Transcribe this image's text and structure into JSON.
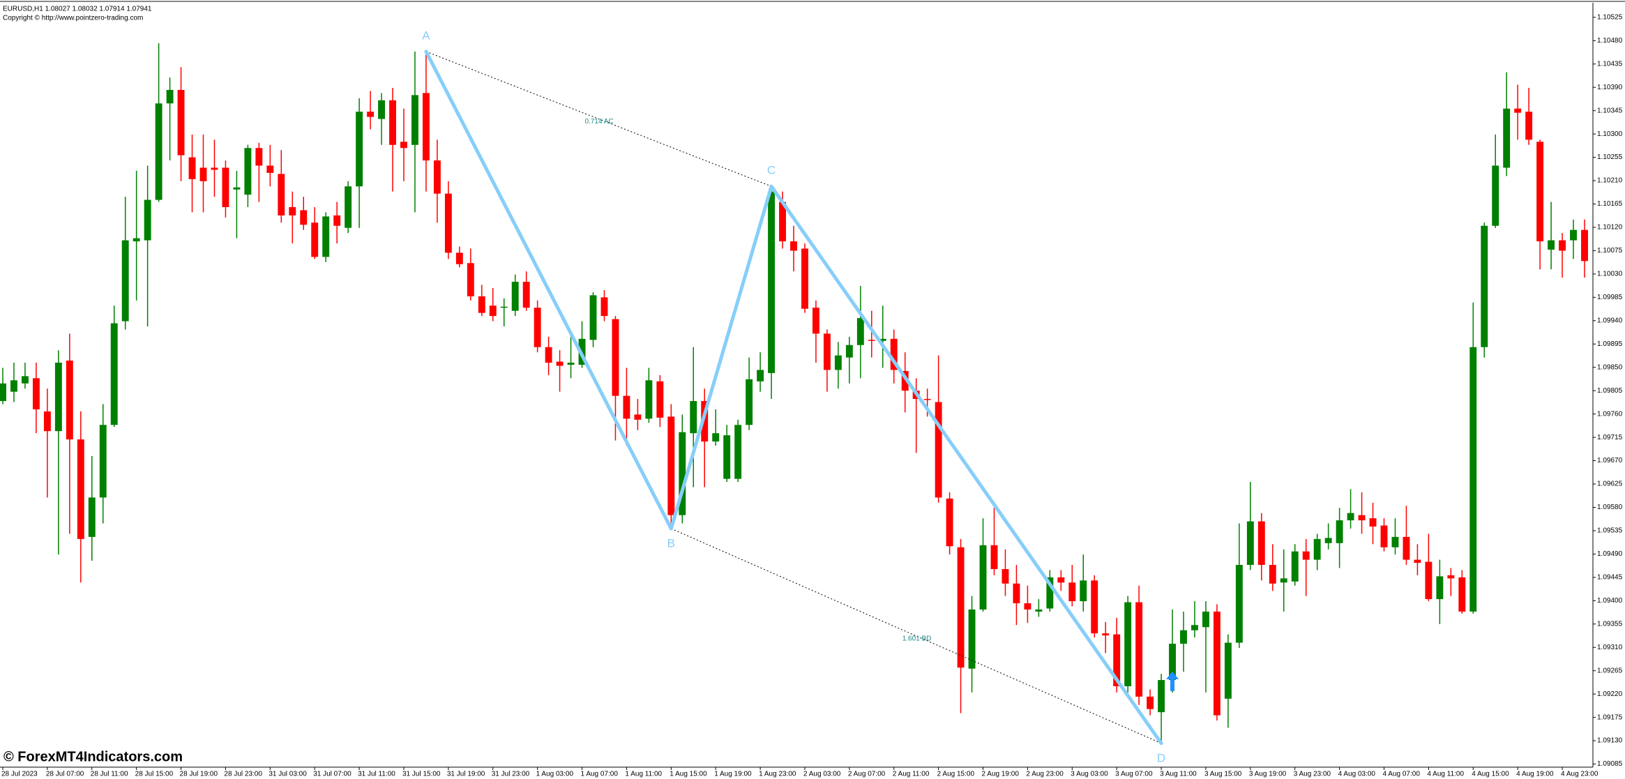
{
  "header": {
    "symbol_line": "EURUSD,H1  1.08027 1.08032 1.07914 1.07941",
    "copyright": "Copyright © http://www.pointzero-trading.com"
  },
  "watermark": "© ForexMT4Indicators.com",
  "chart_data": {
    "type": "candlestick",
    "up_color": "#008000",
    "down_color": "#ff0000",
    "categories": [
      "28 Jul 2023",
      null,
      null,
      null,
      "28 Jul 07:00",
      null,
      null,
      null,
      "28 Jul 11:00",
      null,
      null,
      null,
      "28 Jul 15:00",
      null,
      null,
      null,
      "28 Jul 19:00",
      null,
      null,
      null,
      "28 Jul 23:00",
      null,
      null,
      null,
      "31 Jul 03:00",
      null,
      null,
      null,
      "31 Jul 07:00",
      null,
      null,
      null,
      "31 Jul 11:00",
      null,
      null,
      null,
      "31 Jul 15:00",
      null,
      null,
      null,
      "31 Jul 19:00",
      null,
      null,
      null,
      "31 Jul 23:00",
      null,
      null,
      null,
      "1 Aug 03:00",
      null,
      null,
      null,
      "1 Aug 07:00",
      null,
      null,
      null,
      "1 Aug 11:00",
      null,
      null,
      null,
      "1 Aug 15:00",
      null,
      null,
      null,
      "1 Aug 19:00",
      null,
      null,
      null,
      "1 Aug 23:00",
      null,
      null,
      null,
      "2 Aug 03:00",
      null,
      null,
      null,
      "2 Aug 07:00",
      null,
      null,
      null,
      "2 Aug 11:00",
      null,
      null,
      null,
      "2 Aug 15:00",
      null,
      null,
      null,
      "2 Aug 19:00",
      null,
      null,
      null,
      "2 Aug 23:00",
      null,
      null,
      null,
      "3 Aug 03:00",
      null,
      null,
      null,
      "3 Aug 07:00",
      null,
      null,
      null,
      "3 Aug 11:00",
      null,
      null,
      null,
      "3 Aug 15:00",
      null,
      null,
      null,
      "3 Aug 19:00",
      null,
      null,
      null,
      "3 Aug 23:00",
      null,
      null,
      null,
      "4 Aug 03:00",
      null,
      null,
      null,
      "4 Aug 07:00",
      null,
      null,
      null,
      "4 Aug 11:00",
      null,
      null,
      null,
      "4 Aug 15:00",
      null,
      null,
      null,
      "4 Aug 19:00",
      null,
      null,
      null,
      "4 Aug 23:00",
      null,
      null
    ],
    "open": [
      1.09785,
      1.09803,
      1.09819,
      1.09829,
      1.09765,
      1.09727,
      1.09863,
      1.09711,
      1.09523,
      1.09599,
      1.09739,
      1.09939,
      1.10093,
      1.10095,
      1.10173,
      1.10359,
      1.10385,
      1.10255,
      1.10235,
      1.10235,
      1.10235,
      1.10193,
      1.10183,
      1.10273,
      1.10239,
      1.10223,
      1.10159,
      1.10153,
      1.10129,
      1.10063,
      1.10143,
      1.10119,
      1.10199,
      1.10343,
      1.10329,
      1.10365,
      1.10285,
      1.10279,
      1.10379,
      1.10249,
      1.10185,
      1.10071,
      1.10051,
      1.09987,
      1.09969,
      1.09965,
      1.09959,
      1.10015,
      1.09965,
      1.09889,
      1.09861,
      1.09855,
      1.09855,
      1.09903,
      1.09985,
      1.09943,
      1.09795,
      1.09759,
      1.09751,
      1.09823,
      1.09755,
      1.09565,
      1.09723,
      1.09785,
      1.09707,
      1.09635,
      1.09635,
      1.09739,
      1.09823,
      1.09839,
      1.10169,
      1.10093,
      1.10079,
      1.09965,
      1.09915,
      1.09845,
      1.09869,
      1.09893,
      1.09903,
      1.09901,
      1.09905,
      1.09843,
      1.09805,
      1.09789,
      1.09783,
      1.09597,
      1.09503,
      1.09269,
      1.09383,
      1.09507,
      1.09461,
      1.09433,
      1.09395,
      1.09379,
      1.09385,
      1.09445,
      1.09435,
      1.09399,
      1.09439,
      1.09337,
      1.09335,
      1.09235,
      1.09397,
      1.09215,
      1.09185,
      1.09247,
      1.09317,
      1.09343,
      1.09349,
      1.09379,
      1.09211,
      1.09319,
      1.09469,
      1.09553,
      1.09469,
      1.09435,
      1.09437,
      1.09495,
      1.09479,
      1.09511,
      1.09511,
      1.09555,
      1.09565,
      1.09559,
      1.09545,
      1.09503,
      1.09523,
      1.09479,
      1.09475,
      1.09403,
      1.09449,
      1.09445,
      1.09379,
      1.09889,
      1.10123,
      1.10235,
      1.10349,
      1.10343,
      1.10285,
      1.10077,
      1.10095,
      1.10095,
      1.10115
    ],
    "high": [
      1.09849,
      1.09859,
      1.09859,
      1.09859,
      1.09809,
      1.09883,
      1.09915,
      1.09765,
      1.09679,
      1.09779,
      1.09969,
      1.10179,
      1.10229,
      1.10239,
      1.10475,
      1.10409,
      1.10429,
      1.10299,
      1.10299,
      1.10289,
      1.10249,
      1.10229,
      1.10279,
      1.10283,
      1.10279,
      1.10269,
      1.10189,
      1.10179,
      1.10159,
      1.10149,
      1.10169,
      1.10209,
      1.10369,
      1.10383,
      1.10379,
      1.10389,
      1.10349,
      1.10459,
      1.10459,
      1.10289,
      1.10209,
      1.10083,
      1.10079,
      1.10009,
      1.10003,
      1.09983,
      1.10029,
      1.10035,
      1.09979,
      1.09909,
      1.09883,
      1.09909,
      1.09939,
      1.09995,
      1.09999,
      1.09949,
      1.09849,
      1.09789,
      1.09849,
      1.09835,
      1.09779,
      1.09759,
      1.09889,
      1.09809,
      1.09769,
      1.09739,
      1.09749,
      1.09869,
      1.09879,
      1.10199,
      1.10189,
      1.10123,
      1.10089,
      1.09979,
      1.09923,
      1.09899,
      1.09909,
      1.10007,
      1.09959,
      1.09969,
      1.09923,
      1.09879,
      1.09829,
      1.09809,
      1.09873,
      1.09609,
      1.09519,
      1.09409,
      1.09559,
      1.09579,
      1.09499,
      1.09469,
      1.09429,
      1.09403,
      1.09459,
      1.09459,
      1.09469,
      1.09489,
      1.09449,
      1.09359,
      1.09367,
      1.09409,
      1.09429,
      1.09229,
      1.09259,
      1.09383,
      1.09379,
      1.09399,
      1.09399,
      1.09393,
      1.09335,
      1.09549,
      1.09629,
      1.09569,
      1.09509,
      1.09499,
      1.09509,
      1.09519,
      1.09529,
      1.09549,
      1.09579,
      1.09615,
      1.09609,
      1.09589,
      1.09559,
      1.09559,
      1.09583,
      1.09509,
      1.09529,
      1.09479,
      1.09463,
      1.09459,
      1.09975,
      1.10129,
      1.10299,
      1.10419,
      1.10395,
      1.10389,
      1.10289,
      1.10169,
      1.10109,
      1.10135,
      1.10135
    ],
    "low": [
      1.09779,
      1.09783,
      1.09809,
      1.09723,
      1.09599,
      1.09489,
      1.09529,
      1.09435,
      1.09477,
      1.09549,
      1.09735,
      1.09923,
      1.09979,
      1.09929,
      1.10169,
      1.10249,
      1.10209,
      1.10149,
      1.10149,
      1.10179,
      1.10139,
      1.10099,
      1.10159,
      1.10169,
      1.10199,
      1.10129,
      1.10089,
      1.10115,
      1.10059,
      1.10053,
      1.10089,
      1.10109,
      1.10119,
      1.10309,
      1.10279,
      1.10189,
      1.10209,
      1.10149,
      1.10189,
      1.10129,
      1.10059,
      1.10043,
      1.09979,
      1.09949,
      1.09939,
      1.09929,
      1.09949,
      1.09959,
      1.09879,
      1.09835,
      1.09803,
      1.09829,
      1.09849,
      1.09889,
      1.09939,
      1.09709,
      1.09699,
      1.09729,
      1.09743,
      1.09735,
      1.09539,
      1.09549,
      1.09619,
      1.09619,
      1.09699,
      1.09629,
      1.09629,
      1.09729,
      1.09803,
      1.09789,
      1.10079,
      1.10035,
      1.09955,
      1.09859,
      1.09803,
      1.09809,
      1.09819,
      1.09829,
      1.09869,
      1.09849,
      1.09819,
      1.09763,
      1.09685,
      1.09755,
      1.09589,
      1.09489,
      1.09183,
      1.09223,
      1.09379,
      1.09449,
      1.09409,
      1.09353,
      1.09357,
      1.09369,
      1.09379,
      1.09419,
      1.09389,
      1.09379,
      1.09329,
      1.09299,
      1.09223,
      1.09223,
      1.09199,
      1.09179,
      1.09125,
      1.09223,
      1.09263,
      1.09329,
      1.09223,
      1.09169,
      1.09155,
      1.09309,
      1.09459,
      1.09439,
      1.09419,
      1.09379,
      1.09429,
      1.09409,
      1.09459,
      1.09499,
      1.09463,
      1.09539,
      1.09529,
      1.09509,
      1.09495,
      1.09489,
      1.09469,
      1.09449,
      1.09399,
      1.09355,
      1.09409,
      1.09375,
      1.09375,
      1.09869,
      1.10119,
      1.10219,
      1.10289,
      1.10279,
      1.10039,
      1.10039,
      1.10023,
      1.10059,
      1.10023
    ],
    "close": [
      1.09819,
      1.09825,
      1.09833,
      1.09769,
      1.09727,
      1.09859,
      1.09711,
      1.09519,
      1.09599,
      1.09739,
      1.09935,
      1.10095,
      1.10099,
      1.10173,
      1.10359,
      1.10385,
      1.10259,
      1.10213,
      1.10209,
      1.10231,
      1.10159,
      1.10197,
      1.10273,
      1.10239,
      1.10225,
      1.10143,
      1.10143,
      1.10125,
      1.10063,
      1.10141,
      1.10123,
      1.10199,
      1.10343,
      1.10333,
      1.10365,
      1.10279,
      1.10273,
      1.10375,
      1.10249,
      1.10185,
      1.10071,
      1.10049,
      1.09987,
      1.09955,
      1.09949,
      1.09967,
      1.10015,
      1.09965,
      1.09889,
      1.09859,
      1.09853,
      1.09859,
      1.09905,
      1.09989,
      1.09949,
      1.09795,
      1.09751,
      1.09749,
      1.09825,
      1.09753,
      1.09565,
      1.09725,
      1.09785,
      1.09707,
      1.09723,
      1.09719,
      1.09739,
      1.09827,
      1.09845,
      1.10189,
      1.10093,
      1.10075,
      1.09963,
      1.09915,
      1.09845,
      1.09873,
      1.09893,
      1.09945,
      1.09901,
      1.09905,
      1.09845,
      1.09805,
      1.09789,
      1.09787,
      1.09599,
      1.09505,
      1.09271,
      1.09383,
      1.09507,
      1.09461,
      1.09433,
      1.09395,
      1.09383,
      1.09383,
      1.09445,
      1.09435,
      1.09399,
      1.09439,
      1.09337,
      1.09333,
      1.09235,
      1.09397,
      1.09215,
      1.09191,
      1.09247,
      1.09317,
      1.09343,
      1.09353,
      1.09379,
      1.09179,
      1.09319,
      1.09469,
      1.09553,
      1.09469,
      1.09433,
      1.09443,
      1.09495,
      1.09479,
      1.09519,
      1.09521,
      1.09555,
      1.09569,
      1.09555,
      1.09543,
      1.09503,
      1.09523,
      1.09479,
      1.09473,
      1.09403,
      1.09447,
      1.09443,
      1.09379,
      1.09889,
      1.10123,
      1.10239,
      1.10349,
      1.10341,
      1.10289,
      1.10093,
      1.10095,
      1.10075,
      1.10115,
      1.10055
    ],
    "ylim": [
      1.09079,
      1.10549
    ],
    "yticks": [
      1.09085,
      {
        "value": 1.0913,
        "label": "1.09130"
      },
      1.09175,
      {
        "value": 1.0922,
        "label": "1.09220"
      },
      1.09265,
      {
        "value": 1.0931,
        "label": "1.09310"
      },
      1.09355,
      {
        "value": 1.094,
        "label": "1.09400"
      },
      1.09445,
      {
        "value": 1.0949,
        "label": "1.09490"
      },
      1.09535,
      {
        "value": 1.0958,
        "label": "1.09580"
      },
      1.09625,
      {
        "value": 1.0967,
        "label": "1.09670"
      },
      1.09715,
      {
        "value": 1.0976,
        "label": "1.09760"
      },
      1.09805,
      {
        "value": 1.0985,
        "label": "1.09850"
      },
      1.09895,
      {
        "value": 1.0994,
        "label": "1.09940"
      },
      1.09985,
      {
        "value": 1.1003,
        "label": "1.10030"
      },
      1.10075,
      {
        "value": 1.1012,
        "label": "1.10120"
      },
      1.10165,
      {
        "value": 1.1021,
        "label": "1.10210"
      },
      1.10255,
      {
        "value": 1.103,
        "label": "1.10300"
      },
      1.10345,
      {
        "value": 1.1039,
        "label": "1.10390"
      },
      1.10435,
      {
        "value": 1.1048,
        "label": "1.10480"
      },
      1.10525
    ],
    "pattern": {
      "color": "#87cefa",
      "points": [
        {
          "label": "A",
          "index": 38,
          "price": 1.10459
        },
        {
          "label": "B",
          "index": 60,
          "price": 1.09539
        },
        {
          "label": "C",
          "index": 69,
          "price": 1.10199
        },
        {
          "label": "D",
          "index": 104,
          "price": 1.09125
        }
      ],
      "ac_ratio": "0.714 AC",
      "bd_ratio": "1.601 BD"
    },
    "signal": {
      "index": 105,
      "price": 1.09223,
      "color": "#1e90ff"
    }
  }
}
